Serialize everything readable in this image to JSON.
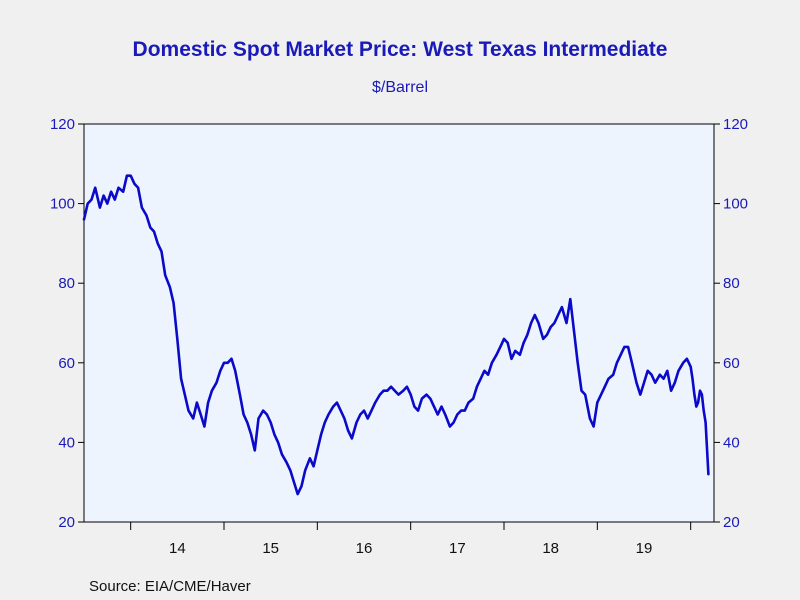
{
  "colors": {
    "title": "#1a1ab8",
    "axis_text": "#1a1ab8",
    "line": "#0a0ac8",
    "plot_bg": "#eef4fe",
    "frame": "#000000",
    "page_bg": "#f0f0f0"
  },
  "source": "Source:  EIA/CME/Haver",
  "chart_data": {
    "type": "line",
    "title": "Domestic Spot Market Price: West Texas Intermediate",
    "subtitle": "$/Barrel",
    "ylim": [
      20,
      120
    ],
    "yticks": [
      20,
      40,
      60,
      80,
      100,
      120
    ],
    "xlim": [
      2013.5,
      2020.25
    ],
    "xticks": [
      "14",
      "15",
      "16",
      "17",
      "18",
      "19"
    ],
    "xtick_positions": [
      2014.5,
      2015.5,
      2016.5,
      2017.5,
      2018.5,
      2019.5
    ],
    "year_boundaries": [
      2014,
      2015,
      2016,
      2017,
      2018,
      2019,
      2020
    ],
    "grid": false,
    "series": [
      {
        "x": [
          2013.5,
          2013.54,
          2013.58,
          2013.62,
          2013.67,
          2013.71,
          2013.75,
          2013.79,
          2013.83,
          2013.87,
          2013.92,
          2013.96,
          2014.0,
          2014.04,
          2014.08,
          2014.12,
          2014.17,
          2014.21,
          2014.25,
          2014.29,
          2014.33,
          2014.37,
          2014.42,
          2014.46,
          2014.5,
          2014.54,
          2014.58,
          2014.62,
          2014.67,
          2014.71,
          2014.75,
          2014.79,
          2014.83,
          2014.87,
          2014.92,
          2014.96,
          2015.0,
          2015.04,
          2015.08,
          2015.12,
          2015.17,
          2015.21,
          2015.25,
          2015.29,
          2015.33,
          2015.37,
          2015.42,
          2015.46,
          2015.5,
          2015.54,
          2015.58,
          2015.62,
          2015.67,
          2015.71,
          2015.75,
          2015.79,
          2015.83,
          2015.87,
          2015.92,
          2015.96,
          2016.0,
          2016.04,
          2016.08,
          2016.12,
          2016.17,
          2016.21,
          2016.25,
          2016.29,
          2016.33,
          2016.37,
          2016.42,
          2016.46,
          2016.5,
          2016.54,
          2016.58,
          2016.62,
          2016.67,
          2016.71,
          2016.75,
          2016.79,
          2016.83,
          2016.87,
          2016.92,
          2016.96,
          2017.0,
          2017.04,
          2017.08,
          2017.12,
          2017.17,
          2017.21,
          2017.25,
          2017.29,
          2017.33,
          2017.37,
          2017.42,
          2017.46,
          2017.5,
          2017.54,
          2017.58,
          2017.62,
          2017.67,
          2017.71,
          2017.75,
          2017.79,
          2017.83,
          2017.87,
          2017.92,
          2017.96,
          2018.0,
          2018.04,
          2018.08,
          2018.12,
          2018.17,
          2018.21,
          2018.25,
          2018.29,
          2018.33,
          2018.37,
          2018.42,
          2018.46,
          2018.5,
          2018.54,
          2018.58,
          2018.62,
          2018.67,
          2018.71,
          2018.75,
          2018.79,
          2018.83,
          2018.87,
          2018.92,
          2018.96,
          2019.0,
          2019.04,
          2019.08,
          2019.12,
          2019.17,
          2019.21,
          2019.25,
          2019.29,
          2019.33,
          2019.37,
          2019.42,
          2019.46,
          2019.5,
          2019.54,
          2019.58,
          2019.62,
          2019.67,
          2019.71,
          2019.75,
          2019.79,
          2019.83,
          2019.87,
          2019.92,
          2019.96,
          2020.0,
          2020.02,
          2020.04,
          2020.06,
          2020.08,
          2020.1,
          2020.12,
          2020.14,
          2020.16,
          2020.19
        ],
        "values": [
          96,
          100,
          101,
          104,
          99,
          102,
          100,
          103,
          101,
          104,
          103,
          107,
          107,
          105,
          104,
          99,
          97,
          94,
          93,
          90,
          88,
          82,
          79,
          75,
          66,
          56,
          52,
          48,
          46,
          50,
          47,
          44,
          50,
          53,
          55,
          58,
          60,
          60,
          61,
          58,
          52,
          47,
          45,
          42,
          38,
          46,
          48,
          47,
          45,
          42,
          40,
          37,
          35,
          33,
          30,
          27,
          29,
          33,
          36,
          34,
          38,
          42,
          45,
          47,
          49,
          50,
          48,
          46,
          43,
          41,
          45,
          47,
          48,
          46,
          48,
          50,
          52,
          53,
          53,
          54,
          53,
          52,
          53,
          54,
          52,
          49,
          48,
          51,
          52,
          51,
          49,
          47,
          49,
          47,
          44,
          45,
          47,
          48,
          48,
          50,
          51,
          54,
          56,
          58,
          57,
          60,
          62,
          64,
          66,
          65,
          61,
          63,
          62,
          65,
          67,
          70,
          72,
          70,
          66,
          67,
          69,
          70,
          72,
          74,
          70,
          76,
          68,
          60,
          53,
          52,
          46,
          44,
          50,
          52,
          54,
          56,
          57,
          60,
          62,
          64,
          64,
          60,
          55,
          52,
          55,
          58,
          57,
          55,
          57,
          56,
          58,
          53,
          55,
          58,
          60,
          61,
          59,
          56,
          52,
          49,
          50,
          53,
          52,
          48,
          45,
          32
        ]
      }
    ]
  }
}
